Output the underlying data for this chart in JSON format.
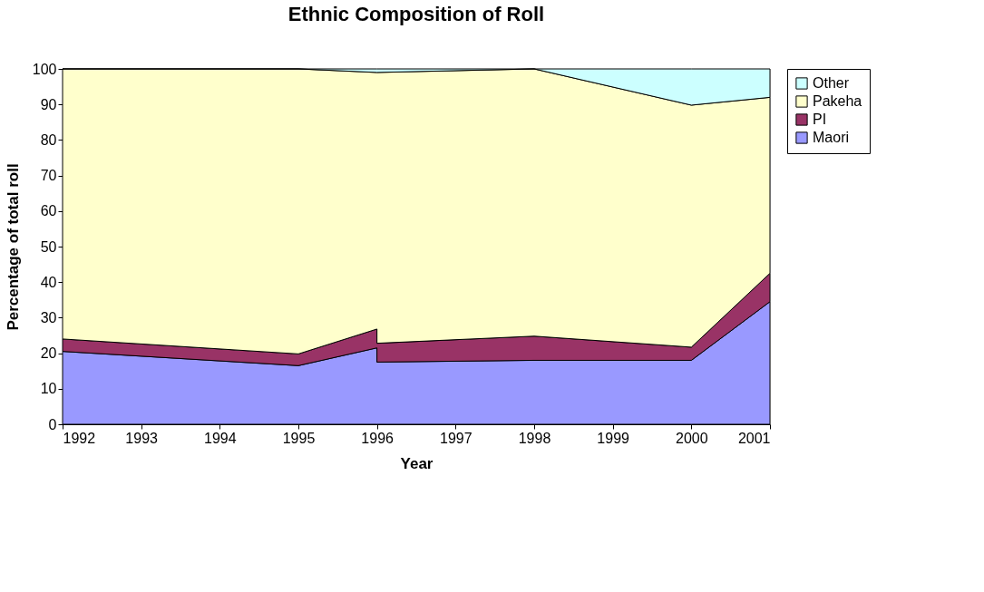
{
  "chart_data": {
    "type": "area",
    "stacked": true,
    "title": "Ethnic Composition of Roll",
    "xlabel": "Year",
    "ylabel": "Percentage of total roll",
    "x": [
      1992,
      1995,
      1996,
      1996,
      1998,
      2000,
      2001
    ],
    "series": [
      {
        "name": "Maori",
        "color": "#9999ff",
        "values": [
          20.5,
          16.5,
          21.5,
          17.5,
          18,
          18,
          34.5
        ]
      },
      {
        "name": "PI",
        "color": "#993366",
        "values": [
          3.5,
          3.3,
          5.3,
          5.3,
          6.8,
          3.7,
          8
        ]
      },
      {
        "name": "Pakeha",
        "color": "#ffffcc",
        "values": [
          76,
          80.2,
          72.2,
          76.2,
          75.2,
          68.1,
          49.5
        ]
      },
      {
        "name": "Other",
        "color": "#ccffff",
        "values": [
          0,
          0,
          1,
          1,
          0,
          10.2,
          8
        ]
      }
    ],
    "xlim": [
      1992,
      2001
    ],
    "xticks": [
      1992,
      1993,
      1994,
      1995,
      1996,
      1997,
      1998,
      1999,
      2000,
      2001
    ],
    "ylim": [
      0,
      100
    ],
    "yticks": [
      0,
      10,
      20,
      30,
      40,
      50,
      60,
      70,
      80,
      90,
      100
    ],
    "legend": "right"
  }
}
